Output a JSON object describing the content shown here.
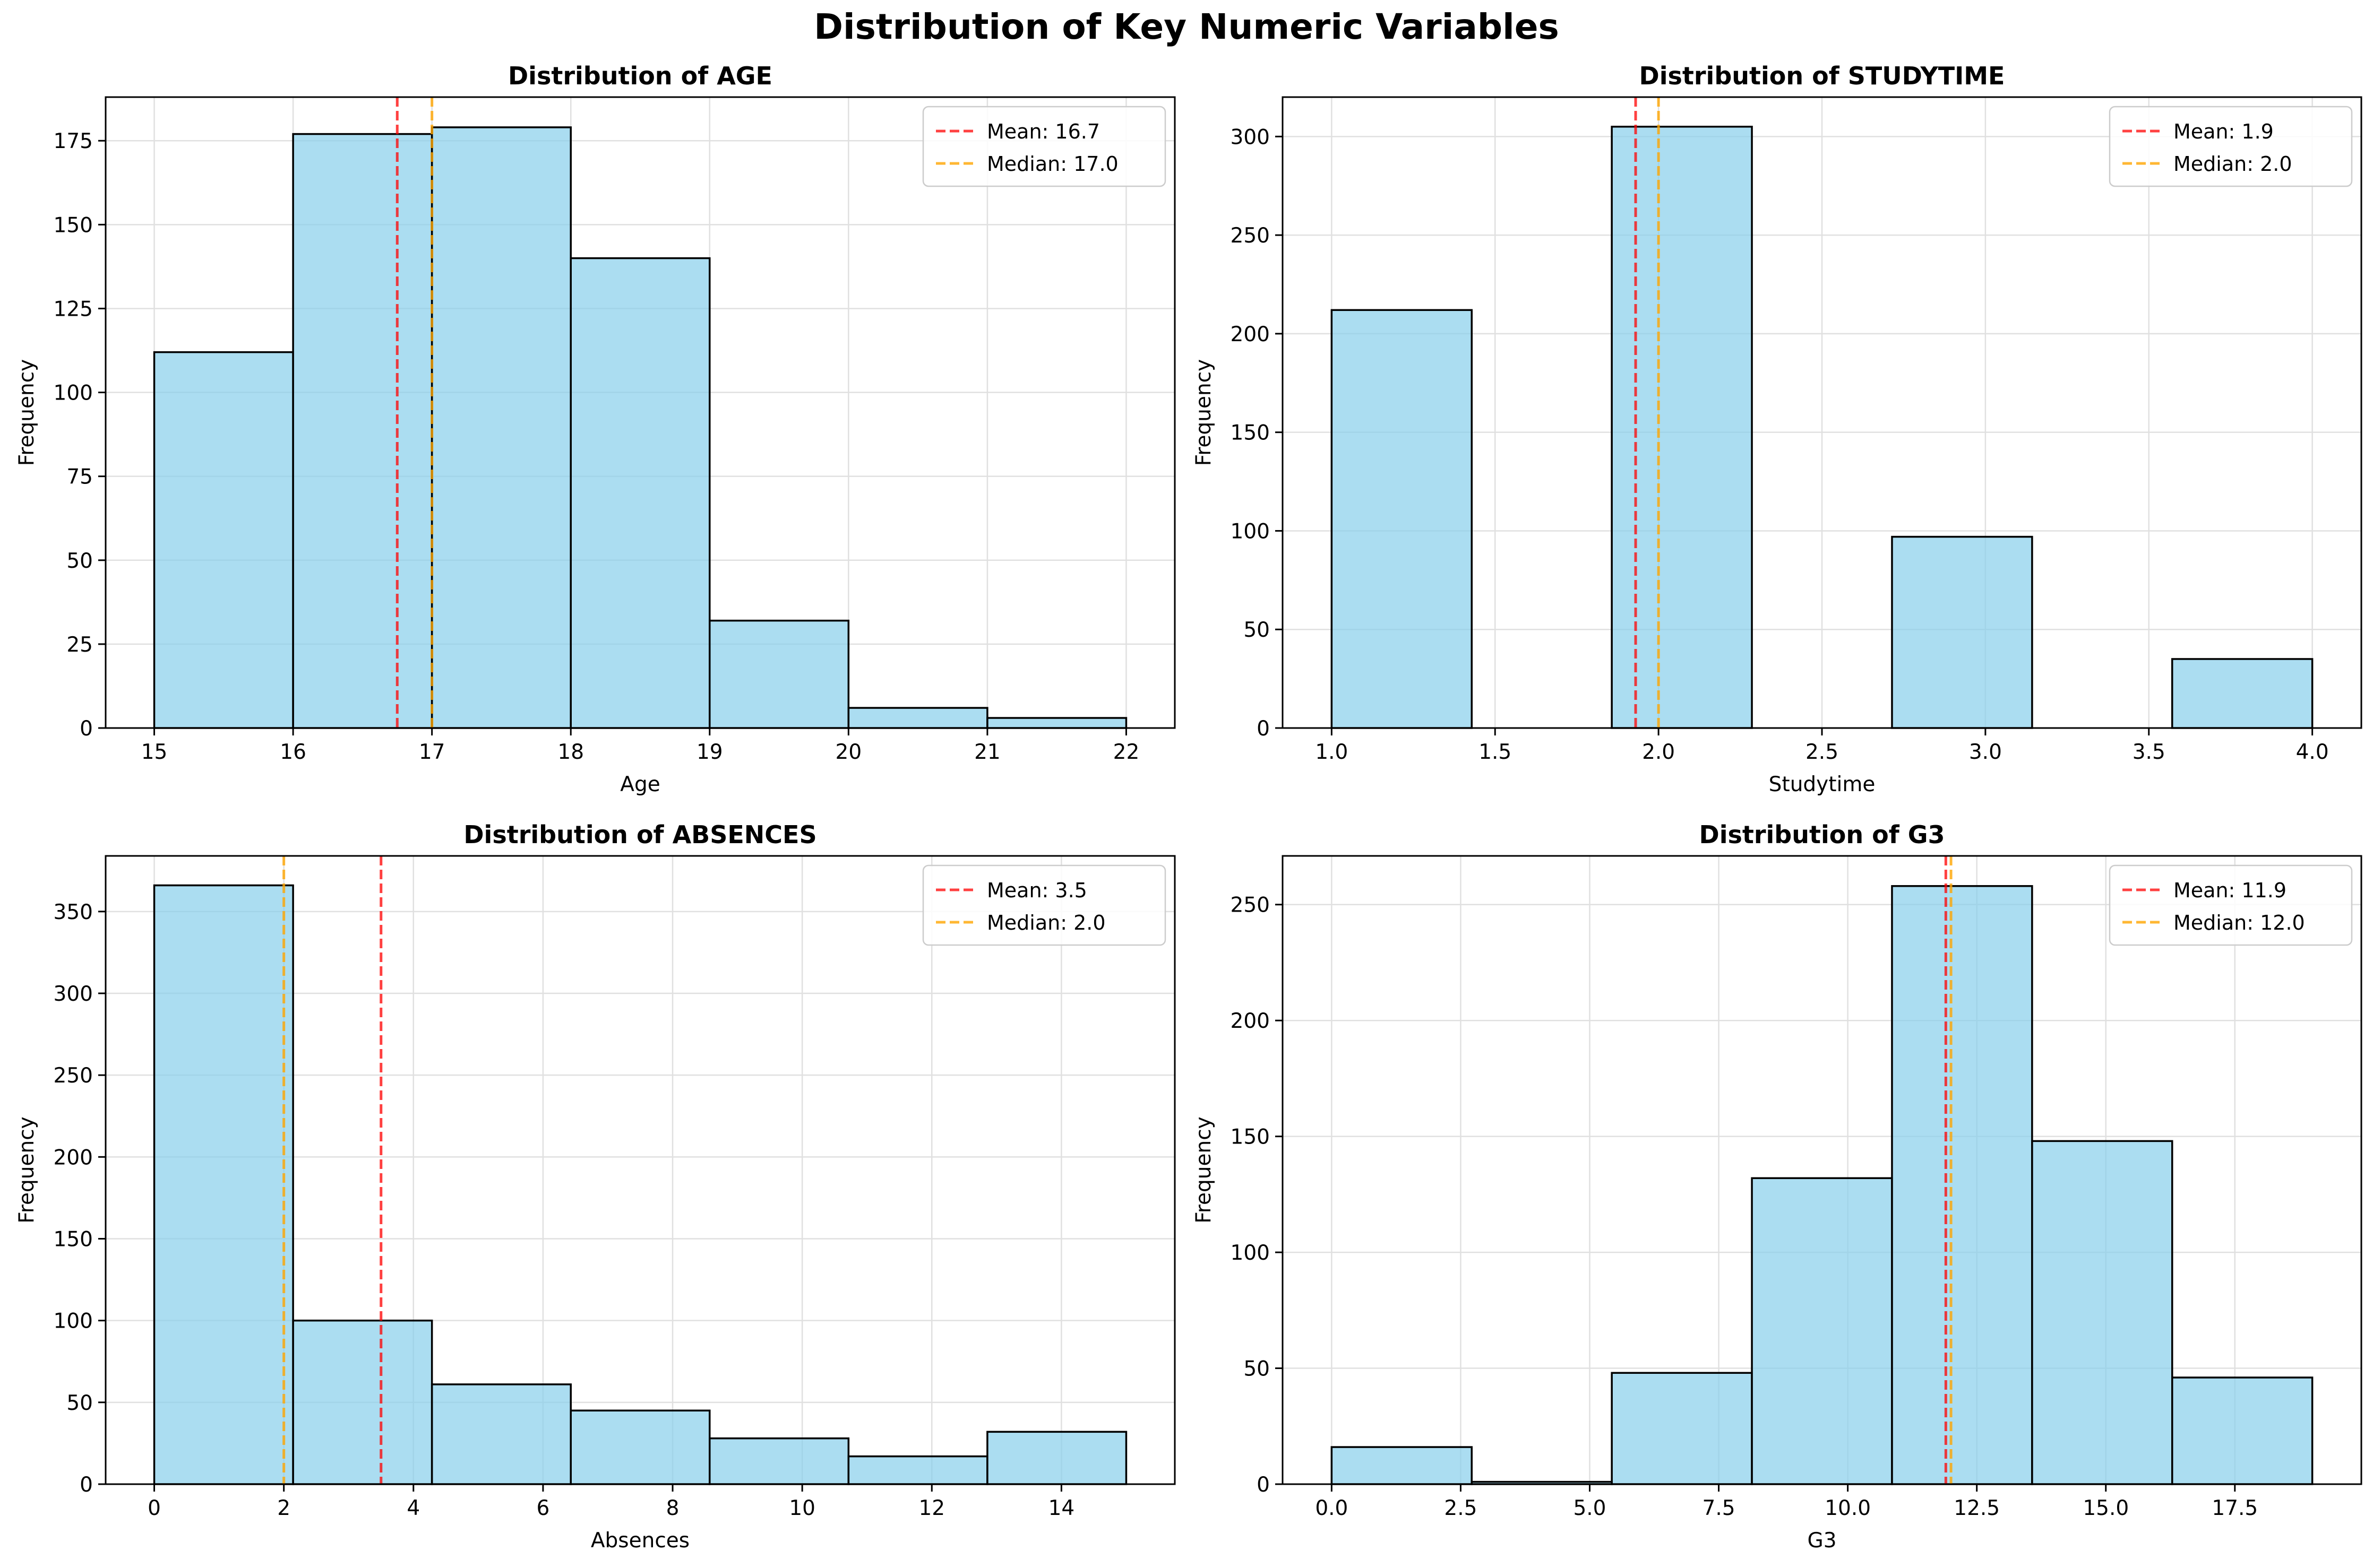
{
  "suptitle": "Distribution of Key Numeric Variables",
  "colors": {
    "bar_fill": "#87CEEB",
    "bar_edge": "#000000",
    "mean_line": "#ff0000",
    "median_line": "#ffa500",
    "grid": "#e0e0e0"
  },
  "chart_data": [
    {
      "type": "bar",
      "title": "Distribution of AGE",
      "xlabel": "Age",
      "ylabel": "Frequency",
      "bin_edges": [
        15,
        16,
        17,
        18,
        19,
        20,
        21,
        22
      ],
      "values": [
        112,
        177,
        179,
        140,
        32,
        6,
        3
      ],
      "bins": [
        {
          "start": 15,
          "end": 16,
          "count": 112
        },
        {
          "start": 16,
          "end": 17,
          "count": 177
        },
        {
          "start": 17,
          "end": 18,
          "count": 179
        },
        {
          "start": 18,
          "end": 19,
          "count": 140
        },
        {
          "start": 19,
          "end": 20,
          "count": 32
        },
        {
          "start": 20,
          "end": 21,
          "count": 6
        },
        {
          "start": 21,
          "end": 22,
          "count": 3
        }
      ],
      "mean": 16.75,
      "median": 17.0,
      "legend": [
        "Mean: 16.7",
        "Median: 17.0"
      ],
      "xlim": [
        14.65,
        22.35
      ],
      "ylim": [
        0,
        188
      ],
      "xticks": [
        15,
        16,
        17,
        18,
        19,
        20,
        21,
        22
      ],
      "xticklabels": [
        "15",
        "16",
        "17",
        "18",
        "19",
        "20",
        "21",
        "22"
      ],
      "yticks": [
        0,
        25,
        50,
        75,
        100,
        125,
        150,
        175
      ],
      "yticklabels": [
        "0",
        "25",
        "50",
        "75",
        "100",
        "125",
        "150",
        "175"
      ],
      "grid": true,
      "legend_position": "top-right"
    },
    {
      "type": "bar",
      "title": "Distribution of STUDYTIME",
      "xlabel": "Studytime",
      "ylabel": "Frequency",
      "bin_edges": [
        1.0,
        1.4286,
        1.8571,
        2.2857,
        2.7143,
        3.1429,
        3.5714,
        4.0
      ],
      "values": [
        212,
        0,
        305,
        0,
        97,
        0,
        35
      ],
      "bins": [
        {
          "start": 1.0,
          "end": 1.4286,
          "count": 212
        },
        {
          "start": 1.4286,
          "end": 1.8571,
          "count": 0
        },
        {
          "start": 1.8571,
          "end": 2.2857,
          "count": 305
        },
        {
          "start": 2.2857,
          "end": 2.7143,
          "count": 0
        },
        {
          "start": 2.7143,
          "end": 3.1429,
          "count": 97
        },
        {
          "start": 3.1429,
          "end": 3.5714,
          "count": 0
        },
        {
          "start": 3.5714,
          "end": 4.0,
          "count": 35
        }
      ],
      "mean": 1.93,
      "median": 2.0,
      "legend": [
        "Mean: 1.9",
        "Median: 2.0"
      ],
      "xlim": [
        0.85,
        4.15
      ],
      "ylim": [
        0,
        320
      ],
      "xticks": [
        1.0,
        1.5,
        2.0,
        2.5,
        3.0,
        3.5,
        4.0
      ],
      "xticklabels": [
        "1.0",
        "1.5",
        "2.0",
        "2.5",
        "3.0",
        "3.5",
        "4.0"
      ],
      "yticks": [
        0,
        50,
        100,
        150,
        200,
        250,
        300
      ],
      "yticklabels": [
        "0",
        "50",
        "100",
        "150",
        "200",
        "250",
        "300"
      ],
      "grid": true,
      "legend_position": "top-right"
    },
    {
      "type": "bar",
      "title": "Distribution of ABSENCES",
      "xlabel": "Absences",
      "ylabel": "Frequency",
      "bin_edges": [
        0,
        2.1429,
        4.2857,
        6.4286,
        8.5714,
        10.7143,
        12.8571,
        15
      ],
      "values": [
        366,
        100,
        61,
        45,
        28,
        17,
        32
      ],
      "bins": [
        {
          "start": 0,
          "end": 2.1429,
          "count": 366
        },
        {
          "start": 2.1429,
          "end": 4.2857,
          "count": 100
        },
        {
          "start": 4.2857,
          "end": 6.4286,
          "count": 61
        },
        {
          "start": 6.4286,
          "end": 8.5714,
          "count": 45
        },
        {
          "start": 8.5714,
          "end": 10.7143,
          "count": 28
        },
        {
          "start": 10.7143,
          "end": 12.8571,
          "count": 17
        },
        {
          "start": 12.8571,
          "end": 15,
          "count": 32
        }
      ],
      "mean": 3.5,
      "median": 2.0,
      "legend": [
        "Mean: 3.5",
        "Median: 2.0"
      ],
      "xlim": [
        -0.75,
        15.75
      ],
      "ylim": [
        0,
        384
      ],
      "xticks": [
        0,
        2,
        4,
        6,
        8,
        10,
        12,
        14
      ],
      "xticklabels": [
        "0",
        "2",
        "4",
        "6",
        "8",
        "10",
        "12",
        "14"
      ],
      "yticks": [
        0,
        50,
        100,
        150,
        200,
        250,
        300,
        350
      ],
      "yticklabels": [
        "0",
        "50",
        "100",
        "150",
        "200",
        "250",
        "300",
        "350"
      ],
      "grid": true,
      "legend_position": "top-right"
    },
    {
      "type": "bar",
      "title": "Distribution of G3",
      "xlabel": "G3",
      "ylabel": "Frequency",
      "bin_edges": [
        0,
        2.7143,
        5.4286,
        8.1429,
        10.8571,
        13.5714,
        16.2857,
        19
      ],
      "values": [
        16,
        1,
        48,
        132,
        258,
        148,
        46
      ],
      "bins": [
        {
          "start": 0,
          "end": 2.7143,
          "count": 16
        },
        {
          "start": 2.7143,
          "end": 5.4286,
          "count": 1
        },
        {
          "start": 5.4286,
          "end": 8.1429,
          "count": 48
        },
        {
          "start": 8.1429,
          "end": 10.8571,
          "count": 132
        },
        {
          "start": 10.8571,
          "end": 13.5714,
          "count": 258
        },
        {
          "start": 13.5714,
          "end": 16.2857,
          "count": 148
        },
        {
          "start": 16.2857,
          "end": 19,
          "count": 46
        }
      ],
      "mean": 11.9,
      "median": 12.0,
      "legend": [
        "Mean: 11.9",
        "Median: 12.0"
      ],
      "xlim": [
        -0.95,
        19.95
      ],
      "ylim": [
        0,
        271
      ],
      "xticks": [
        0,
        2.5,
        5,
        7.5,
        10,
        12.5,
        15,
        17.5
      ],
      "xticklabels": [
        "0.0",
        "2.5",
        "5.0",
        "7.5",
        "10.0",
        "12.5",
        "15.0",
        "17.5"
      ],
      "yticks": [
        0,
        50,
        100,
        150,
        200,
        250
      ],
      "yticklabels": [
        "0",
        "50",
        "100",
        "150",
        "200",
        "250"
      ],
      "grid": true,
      "legend_position": "top-right"
    }
  ]
}
